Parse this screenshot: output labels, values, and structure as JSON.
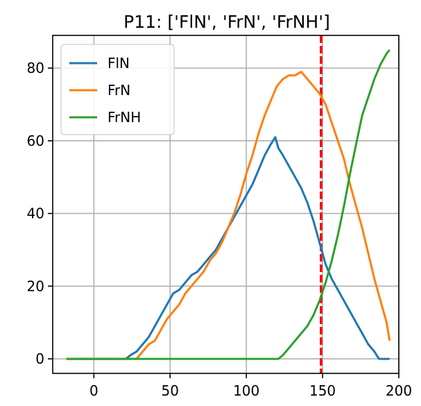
{
  "chart_data": {
    "type": "line",
    "title": "P11: ['FlN', 'FrN', 'FrNH']",
    "xlim": [
      -27,
      200
    ],
    "ylim": [
      -4,
      89
    ],
    "xticks": [
      0,
      50,
      100,
      150,
      200
    ],
    "yticks": [
      0,
      20,
      40,
      60,
      80
    ],
    "grid": true,
    "legend_position": "top-left",
    "vline": {
      "x": 149,
      "color": "#ff0000",
      "style": "dashed"
    },
    "series": [
      {
        "name": "FlN",
        "color": "#1f77b4",
        "points": [
          [
            -18,
            0
          ],
          [
            21,
            0
          ],
          [
            24,
            1
          ],
          [
            28,
            2
          ],
          [
            32,
            4
          ],
          [
            36,
            6
          ],
          [
            40,
            9
          ],
          [
            44,
            12
          ],
          [
            48,
            15
          ],
          [
            52,
            18
          ],
          [
            56,
            19
          ],
          [
            60,
            21
          ],
          [
            64,
            23
          ],
          [
            68,
            24
          ],
          [
            72,
            26
          ],
          [
            76,
            28
          ],
          [
            80,
            30
          ],
          [
            84,
            33
          ],
          [
            88,
            36
          ],
          [
            92,
            39
          ],
          [
            96,
            42
          ],
          [
            100,
            45
          ],
          [
            104,
            48
          ],
          [
            108,
            52
          ],
          [
            112,
            56
          ],
          [
            116,
            59
          ],
          [
            119,
            61
          ],
          [
            121,
            58
          ],
          [
            124,
            56
          ],
          [
            128,
            53
          ],
          [
            132,
            50
          ],
          [
            136,
            47
          ],
          [
            140,
            43
          ],
          [
            144,
            38
          ],
          [
            148,
            32
          ],
          [
            152,
            26
          ],
          [
            156,
            22
          ],
          [
            160,
            19
          ],
          [
            164,
            16
          ],
          [
            168,
            13
          ],
          [
            172,
            10
          ],
          [
            176,
            7
          ],
          [
            180,
            4
          ],
          [
            184,
            2
          ],
          [
            187,
            0
          ],
          [
            194,
            0
          ]
        ]
      },
      {
        "name": "FrN",
        "color": "#ff7f0e",
        "points": [
          [
            -18,
            0
          ],
          [
            28,
            0
          ],
          [
            32,
            2
          ],
          [
            36,
            4
          ],
          [
            40,
            5
          ],
          [
            44,
            8
          ],
          [
            48,
            11
          ],
          [
            52,
            13
          ],
          [
            56,
            15
          ],
          [
            60,
            18
          ],
          [
            64,
            20
          ],
          [
            68,
            22
          ],
          [
            72,
            24
          ],
          [
            76,
            27
          ],
          [
            80,
            29
          ],
          [
            84,
            32
          ],
          [
            88,
            36
          ],
          [
            92,
            40
          ],
          [
            96,
            45
          ],
          [
            100,
            51
          ],
          [
            104,
            56
          ],
          [
            108,
            62
          ],
          [
            112,
            67
          ],
          [
            116,
            71
          ],
          [
            120,
            75
          ],
          [
            124,
            77
          ],
          [
            128,
            78
          ],
          [
            132,
            78
          ],
          [
            136,
            79
          ],
          [
            140,
            77
          ],
          [
            144,
            75
          ],
          [
            148,
            73
          ],
          [
            152,
            70
          ],
          [
            156,
            65
          ],
          [
            160,
            60
          ],
          [
            164,
            55
          ],
          [
            168,
            48
          ],
          [
            172,
            42
          ],
          [
            176,
            36
          ],
          [
            180,
            29
          ],
          [
            184,
            22
          ],
          [
            188,
            16
          ],
          [
            192,
            10
          ],
          [
            194,
            5
          ]
        ]
      },
      {
        "name": "FrNH",
        "color": "#2ca02c",
        "points": [
          [
            -18,
            0
          ],
          [
            121,
            0
          ],
          [
            124,
            1
          ],
          [
            128,
            3
          ],
          [
            132,
            5
          ],
          [
            136,
            7
          ],
          [
            140,
            9
          ],
          [
            144,
            12
          ],
          [
            148,
            16
          ],
          [
            152,
            21
          ],
          [
            156,
            27
          ],
          [
            160,
            34
          ],
          [
            164,
            42
          ],
          [
            168,
            51
          ],
          [
            172,
            59
          ],
          [
            176,
            67
          ],
          [
            180,
            72
          ],
          [
            184,
            77
          ],
          [
            188,
            81
          ],
          [
            192,
            84
          ],
          [
            194,
            85
          ]
        ]
      }
    ]
  }
}
